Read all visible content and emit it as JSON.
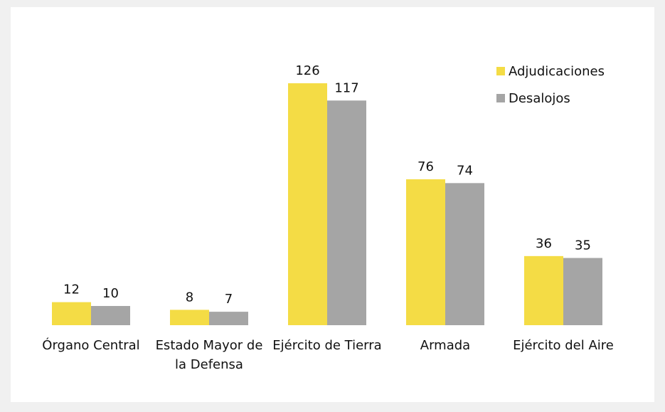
{
  "chart_data": {
    "type": "bar",
    "categories": [
      "Órgano Central",
      "Estado Mayor de la Defensa",
      "Ejército de Tierra",
      "Armada",
      "Ejército del Aire"
    ],
    "series": [
      {
        "name": "Adjudicaciones",
        "color": "#f4dc45",
        "values": [
          12,
          8,
          126,
          76,
          36
        ]
      },
      {
        "name": "Desalojos",
        "color": "#a5a5a5",
        "values": [
          10,
          7,
          117,
          74,
          35
        ]
      }
    ],
    "legend": "upper right"
  }
}
